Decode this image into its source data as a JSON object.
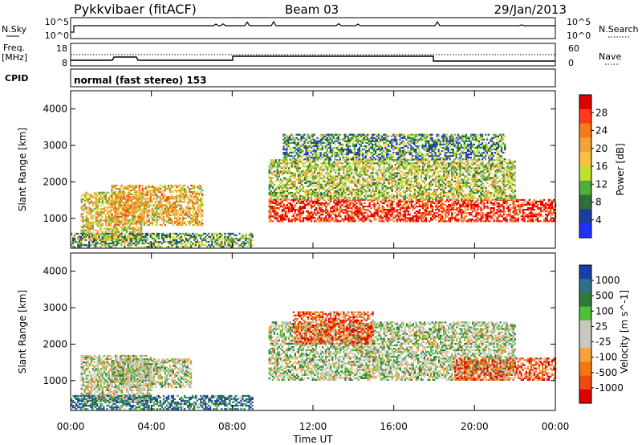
{
  "header": {
    "title": "Pykkvibaer (fitACF)",
    "beam": "Beam 03",
    "date": "29/Jan/2013"
  },
  "top_panels": {
    "nsky_label": "N.Sky",
    "nsearch_label": "N.Search",
    "freq_label_1": "Freq.",
    "freq_label_2": "[MHz]",
    "nave_label": "Nave",
    "cpid_label": "CPID",
    "cpid_value": "normal (fast stereo) 153",
    "noise_left_ticks": [
      "10^5",
      "10^0"
    ],
    "noise_right_ticks": [
      "10^5",
      "10^0"
    ],
    "freq_ticks": [
      "18",
      "8"
    ],
    "nave_ticks": [
      "60",
      "0"
    ]
  },
  "colors": {
    "power_scale": [
      "#2030ff",
      "#1a3f9a",
      "#2f6f3a",
      "#4fae3a",
      "#bfe030",
      "#f5c242",
      "#f2a23a",
      "#f47a1c",
      "#ff3b1a",
      "#e00000"
    ],
    "velocity_scale": [
      "#1a3ea8",
      "#2f6f8a",
      "#2f7a3a",
      "#4fbf3a",
      "#c8c8c0",
      "#c8c8c0",
      "#f5a23a",
      "#f07a10",
      "#f04a10",
      "#e00000"
    ]
  },
  "chart_data": [
    {
      "type": "heatmap",
      "panel": "power",
      "ylabel": "Slant Range [km]",
      "ylim": [
        180,
        4500
      ],
      "yticks": [
        "1000",
        "2000",
        "3000",
        "4000"
      ],
      "xlim": [
        0,
        24
      ],
      "xticks": [
        "00:00",
        "04:00",
        "08:00",
        "12:00",
        "16:00",
        "20:00",
        "00:00"
      ],
      "colorbar_label": "Power [dB]",
      "colorbar_ticks": [
        "28",
        "24",
        "20",
        "16",
        "12",
        "8",
        "4"
      ],
      "regions": [
        {
          "t": [
            0.5,
            3.5
          ],
          "r": [
            380,
            1700
          ],
          "level": 0.55
        },
        {
          "t": [
            2.0,
            6.5
          ],
          "r": [
            800,
            1900
          ],
          "level": 0.6
        },
        {
          "t": [
            9.8,
            24
          ],
          "r": [
            900,
            1500
          ],
          "level": 0.9
        },
        {
          "t": [
            9.8,
            22
          ],
          "r": [
            1500,
            2600
          ],
          "level": 0.45
        },
        {
          "t": [
            10.5,
            21.5
          ],
          "r": [
            2600,
            3300
          ],
          "level": 0.3
        },
        {
          "t": [
            0,
            9
          ],
          "r": [
            200,
            600
          ],
          "level": 0.35
        }
      ]
    },
    {
      "type": "heatmap",
      "panel": "velocity",
      "ylabel": "Slant Range [km]",
      "xlabel": "Time UT",
      "ylim": [
        180,
        4500
      ],
      "yticks": [
        "1000",
        "2000",
        "3000",
        "4000"
      ],
      "xlim": [
        0,
        24
      ],
      "xticks": [
        "00:00",
        "04:00",
        "08:00",
        "12:00",
        "16:00",
        "20:00",
        "00:00"
      ],
      "colorbar_label": "Velocity [m s^-1]",
      "colorbar_ticks": [
        "1000",
        "500",
        "100",
        "25",
        "-25",
        "-100",
        "-500",
        "-1000"
      ],
      "regions": [
        {
          "t": [
            0.5,
            4
          ],
          "r": [
            400,
            1700
          ],
          "level": 0.5
        },
        {
          "t": [
            2,
            6
          ],
          "r": [
            800,
            1600
          ],
          "level": 0.45
        },
        {
          "t": [
            9.8,
            22
          ],
          "r": [
            1000,
            2600
          ],
          "level": 0.45
        },
        {
          "t": [
            11,
            15
          ],
          "r": [
            2000,
            2900
          ],
          "level": 0.8
        },
        {
          "t": [
            19,
            24
          ],
          "r": [
            1000,
            1600
          ],
          "level": 0.8
        },
        {
          "t": [
            0,
            9
          ],
          "r": [
            200,
            600
          ],
          "level": 0.2
        }
      ]
    }
  ]
}
